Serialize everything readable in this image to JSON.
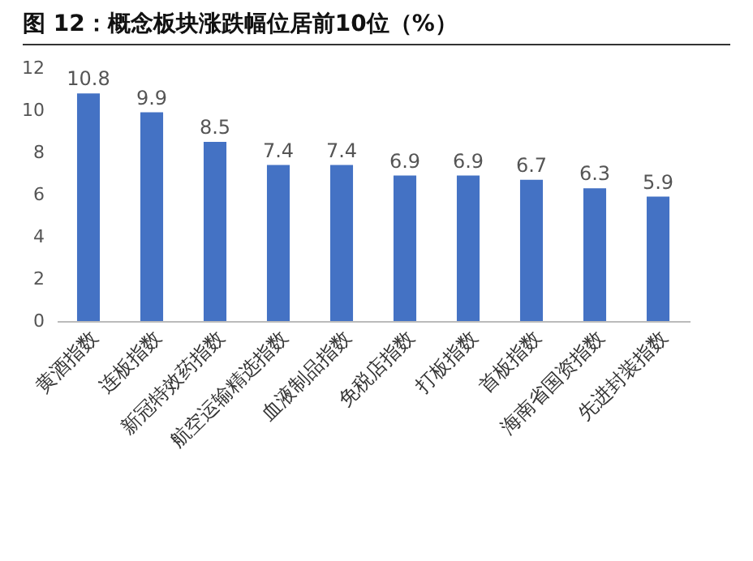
{
  "chart_data": {
    "type": "bar",
    "title": "图 12：概念板块涨跌幅位居前10位（%）",
    "categories": [
      "黄酒指数",
      "连板指数",
      "新冠特效药指数",
      "航空运输精选指数",
      "血液制品指数",
      "免税店指数",
      "打板指数",
      "首板指数",
      "海南省国资指数",
      "先进封装指数"
    ],
    "values": [
      10.8,
      9.9,
      8.5,
      7.4,
      7.4,
      6.9,
      6.9,
      6.7,
      6.3,
      5.9
    ],
    "color": "#4472c4",
    "ylim": [
      0,
      12
    ],
    "yticks": [
      0,
      2,
      4,
      6,
      8,
      10,
      12
    ],
    "data_labels": true,
    "grid": false
  }
}
